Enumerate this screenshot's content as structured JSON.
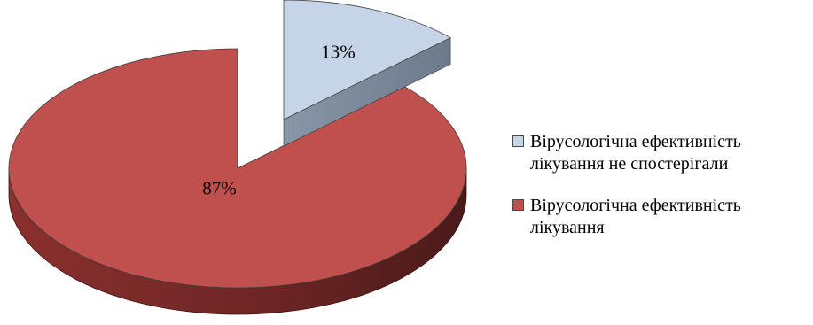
{
  "chart_data": {
    "type": "pie",
    "title": "",
    "slices": [
      {
        "label": "Вірусологічна ефективність лікування не спостерігали",
        "value": 13,
        "display": "13%",
        "color": "#c6d4e8",
        "side_color": "#7a889a",
        "exploded": true
      },
      {
        "label": "Вірусологічна ефективність лікування",
        "value": 87,
        "display": "87%",
        "color": "#c0504d",
        "side_color": "#7a2a28",
        "exploded": false
      }
    ],
    "legend_position": "right"
  },
  "legend": {
    "items": [
      {
        "text": "Вірусологічна ефективність лікування не спостерігали",
        "color": "#c6d4e8"
      },
      {
        "text": "Вірусологічна ефективність лікування",
        "color": "#c0504d"
      }
    ]
  }
}
